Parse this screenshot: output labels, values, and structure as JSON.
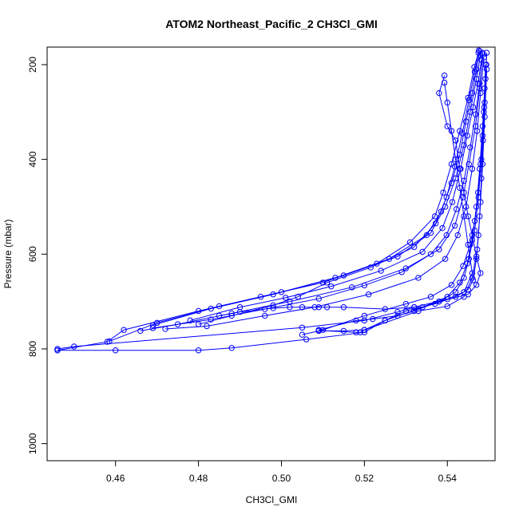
{
  "chart_data": {
    "type": "line",
    "title": "ATOM2 Northeast_Pacific_2 CH3Cl_GMI",
    "xlabel": "CH3Cl_GMI",
    "ylabel": "Pressure (mbar)",
    "xlim": [
      0.4435,
      0.5515
    ],
    "ylim": [
      1036,
      163
    ],
    "x_ticks": [
      0.46,
      0.48,
      0.5,
      0.52,
      0.54
    ],
    "x_tick_labels": [
      "0.46",
      "0.48",
      "0.50",
      "0.52",
      "0.54"
    ],
    "y_ticks": [
      200,
      400,
      600,
      800,
      1000
    ],
    "y_tick_labels": [
      "200",
      "400",
      "600",
      "800",
      "1000"
    ],
    "grid": false,
    "legend": "none",
    "color": "#0000ff",
    "marker": "open-circle",
    "series": [
      {
        "values": [
          [
            0.5475,
            175
          ],
          [
            0.5465,
            205
          ],
          [
            0.545,
            270
          ],
          [
            0.543,
            340
          ],
          [
            0.541,
            410
          ],
          [
            0.539,
            470
          ],
          [
            0.537,
            520
          ],
          [
            0.531,
            575
          ],
          [
            0.523,
            620
          ],
          [
            0.51,
            660
          ],
          [
            0.495,
            690
          ],
          [
            0.48,
            720
          ],
          [
            0.462,
            760
          ],
          [
            0.458,
            785
          ],
          [
            0.446,
            803
          ]
        ]
      },
      {
        "values": [
          [
            0.548,
            180
          ],
          [
            0.547,
            230
          ],
          [
            0.5455,
            300
          ],
          [
            0.544,
            370
          ],
          [
            0.542,
            440
          ],
          [
            0.5395,
            500
          ],
          [
            0.536,
            555
          ],
          [
            0.528,
            605
          ],
          [
            0.515,
            645
          ],
          [
            0.5,
            680
          ],
          [
            0.485,
            710
          ],
          [
            0.47,
            745
          ],
          [
            0.4585,
            784
          ]
        ]
      },
      {
        "values": [
          [
            0.5485,
            175
          ],
          [
            0.5478,
            250
          ],
          [
            0.5468,
            330
          ],
          [
            0.5452,
            410
          ],
          [
            0.5438,
            480
          ],
          [
            0.5418,
            540
          ],
          [
            0.538,
            590
          ],
          [
            0.53,
            630
          ],
          [
            0.517,
            670
          ],
          [
            0.502,
            700
          ],
          [
            0.488,
            725
          ],
          [
            0.475,
            748
          ],
          [
            0.466,
            762
          ]
        ]
      },
      {
        "values": [
          [
            0.5478,
            172
          ],
          [
            0.547,
            210
          ],
          [
            0.546,
            260
          ],
          [
            0.5445,
            320
          ],
          [
            0.543,
            390
          ],
          [
            0.541,
            450
          ],
          [
            0.5385,
            510
          ],
          [
            0.535,
            560
          ],
          [
            0.526,
            610
          ],
          [
            0.513,
            650
          ],
          [
            0.498,
            685
          ],
          [
            0.483,
            715
          ],
          [
            0.469,
            750
          ]
        ]
      },
      {
        "values": [
          [
            0.5482,
            190
          ],
          [
            0.5474,
            240
          ],
          [
            0.5462,
            290
          ],
          [
            0.5448,
            350
          ],
          [
            0.5432,
            420
          ],
          [
            0.5412,
            490
          ],
          [
            0.5388,
            545
          ],
          [
            0.534,
            595
          ],
          [
            0.524,
            635
          ],
          [
            0.512,
            668
          ],
          [
            0.501,
            692
          ],
          [
            0.49,
            712
          ],
          [
            0.478,
            740
          ]
        ]
      },
      {
        "values": [
          [
            0.5488,
            185
          ],
          [
            0.548,
            260
          ],
          [
            0.5472,
            340
          ],
          [
            0.546,
            420
          ],
          [
            0.5445,
            500
          ],
          [
            0.5425,
            560
          ],
          [
            0.5395,
            610
          ],
          [
            0.533,
            650
          ],
          [
            0.521,
            685
          ],
          [
            0.508,
            712
          ],
          [
            0.496,
            730
          ],
          [
            0.482,
            752
          ],
          [
            0.472,
            758
          ]
        ]
      },
      {
        "values": [
          [
            0.5476,
            170
          ],
          [
            0.5466,
            215
          ],
          [
            0.5452,
            275
          ],
          [
            0.5436,
            345
          ],
          [
            0.5418,
            415
          ],
          [
            0.5398,
            480
          ],
          [
            0.5372,
            535
          ],
          [
            0.532,
            585
          ],
          [
            0.5215,
            628
          ],
          [
            0.511,
            660
          ],
          [
            0.504,
            690
          ],
          [
            0.498,
            708
          ],
          [
            0.488,
            730
          ],
          [
            0.48,
            748
          ]
        ]
      },
      {
        "values": [
          [
            0.549,
            250
          ],
          [
            0.5485,
            330
          ],
          [
            0.5478,
            420
          ],
          [
            0.547,
            500
          ],
          [
            0.546,
            570
          ],
          [
            0.5448,
            620
          ],
          [
            0.543,
            660
          ],
          [
            0.54,
            690
          ],
          [
            0.534,
            712
          ],
          [
            0.532,
            712
          ],
          [
            0.525,
            716
          ],
          [
            0.515,
            712
          ],
          [
            0.511,
            712
          ],
          [
            0.509,
            712
          ],
          [
            0.505,
            712
          ],
          [
            0.502,
            712
          ],
          [
            0.498,
            714
          ],
          [
            0.49,
            722
          ],
          [
            0.485,
            730
          ]
        ]
      },
      {
        "values": [
          [
            0.5492,
            200
          ],
          [
            0.5488,
            300
          ],
          [
            0.5482,
            400
          ],
          [
            0.5475,
            480
          ],
          [
            0.5466,
            550
          ],
          [
            0.5452,
            610
          ],
          [
            0.544,
            650
          ],
          [
            0.542,
            680
          ],
          [
            0.538,
            700
          ],
          [
            0.532,
            720
          ],
          [
            0.528,
            730
          ],
          [
            0.522,
            737
          ],
          [
            0.518,
            740
          ],
          [
            0.509,
            760
          ]
        ]
      },
      {
        "values": [
          [
            0.5495,
            210
          ],
          [
            0.549,
            310
          ],
          [
            0.5485,
            410
          ],
          [
            0.548,
            490
          ],
          [
            0.5475,
            560
          ],
          [
            0.547,
            610
          ],
          [
            0.5462,
            655
          ],
          [
            0.545,
            675
          ],
          [
            0.542,
            690
          ],
          [
            0.537,
            705
          ],
          [
            0.53,
            720
          ],
          [
            0.525,
            740
          ],
          [
            0.52,
            760
          ],
          [
            0.515,
            762
          ],
          [
            0.509,
            762
          ]
        ]
      },
      {
        "values": [
          [
            0.5494,
            200
          ],
          [
            0.549,
            280
          ],
          [
            0.5486,
            360
          ],
          [
            0.5482,
            440
          ],
          [
            0.5478,
            520
          ],
          [
            0.5472,
            590
          ],
          [
            0.546,
            650
          ],
          [
            0.544,
            690
          ],
          [
            0.54,
            710
          ],
          [
            0.533,
            720
          ],
          [
            0.52,
            760
          ],
          [
            0.519,
            765
          ],
          [
            0.518,
            765
          ],
          [
            0.509,
            761
          ]
        ]
      },
      {
        "values": [
          [
            0.5393,
            223
          ],
          [
            0.538,
            260
          ],
          [
            0.54,
            330
          ],
          [
            0.542,
            360
          ],
          [
            0.543,
            420
          ],
          [
            0.544,
            470
          ],
          [
            0.545,
            520
          ],
          [
            0.546,
            560
          ],
          [
            0.547,
            605
          ],
          [
            0.548,
            640
          ],
          [
            0.547,
            665
          ],
          [
            0.545,
            685
          ],
          [
            0.538,
            700
          ],
          [
            0.525,
            740
          ],
          [
            0.52,
            765
          ],
          [
            0.506,
            780
          ],
          [
            0.488,
            798
          ],
          [
            0.48,
            803
          ],
          [
            0.46,
            803
          ],
          [
            0.446,
            803
          ]
        ]
      },
      {
        "values": [
          [
            0.5393,
            238
          ],
          [
            0.54,
            280
          ],
          [
            0.541,
            340
          ],
          [
            0.542,
            400
          ],
          [
            0.543,
            460
          ],
          [
            0.544,
            520
          ],
          [
            0.545,
            580
          ],
          [
            0.546,
            640
          ],
          [
            0.544,
            680
          ],
          [
            0.54,
            695
          ],
          [
            0.532,
            712
          ],
          [
            0.528,
            722
          ],
          [
            0.52,
            740
          ],
          [
            0.505,
            755
          ],
          [
            0.45,
            795
          ],
          [
            0.446,
            800
          ]
        ]
      },
      {
        "values": [
          [
            0.5495,
            175
          ],
          [
            0.5492,
            230
          ],
          [
            0.5489,
            290
          ],
          [
            0.5485,
            350
          ],
          [
            0.548,
            410
          ],
          [
            0.5474,
            470
          ],
          [
            0.5466,
            530
          ],
          [
            0.5455,
            580
          ],
          [
            0.5438,
            625
          ],
          [
            0.541,
            665
          ],
          [
            0.536,
            690
          ],
          [
            0.53,
            705
          ],
          [
            0.52,
            730
          ],
          [
            0.51,
            760
          ],
          [
            0.505,
            770
          ]
        ]
      },
      {
        "values": [
          [
            0.5486,
            178
          ],
          [
            0.5478,
            240
          ],
          [
            0.5468,
            305
          ],
          [
            0.5455,
            375
          ],
          [
            0.544,
            445
          ],
          [
            0.5422,
            505
          ],
          [
            0.5398,
            560
          ],
          [
            0.536,
            600
          ],
          [
            0.529,
            638
          ],
          [
            0.52,
            666
          ],
          [
            0.509,
            694
          ],
          [
            0.496,
            716
          ],
          [
            0.483,
            738
          ],
          [
            0.469,
            756
          ]
        ]
      }
    ]
  }
}
